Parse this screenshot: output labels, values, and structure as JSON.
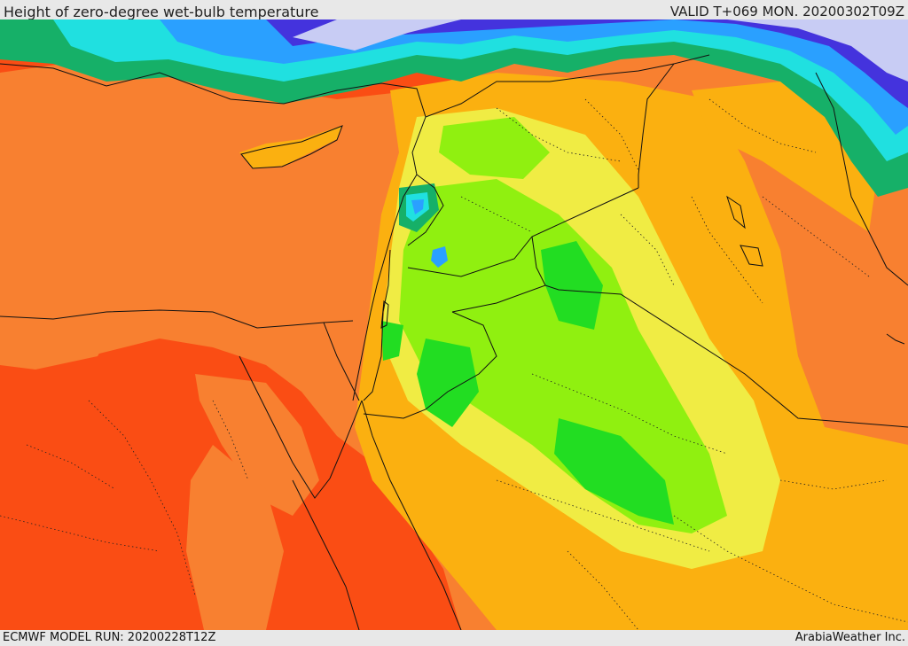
{
  "header": {
    "title": "Height of zero-degree wet-bulb temperature",
    "valid_time": "VALID T+069 MON. 20200302T09Z"
  },
  "footer": {
    "model_run": "ECMWF MODEL RUN: 20200228T12Z",
    "credit": "ArabiaWeather Inc."
  },
  "palette": {
    "highest": "#fa4d14",
    "very_high": "#f88030",
    "high": "#fbb010",
    "upper_mid": "#f0ec44",
    "mid": "#90f010",
    "lower_mid": "#22dd22",
    "low": "#16b068",
    "lower": "#20e0e0",
    "very_low": "#2aa0ff",
    "lowest": "#4433dd",
    "snow": "#c8ccf4"
  },
  "map": {
    "overlays": [
      "country-borders",
      "coastlines",
      "province-borders"
    ]
  }
}
